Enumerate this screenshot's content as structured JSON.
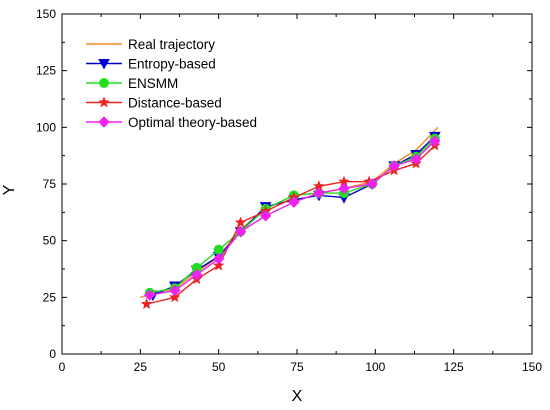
{
  "chart_data": {
    "type": "line",
    "xlabel": "X",
    "ylabel": "Y",
    "xlim": [
      0,
      150
    ],
    "ylim": [
      0,
      150
    ],
    "xticks": [
      "0",
      "25",
      "50",
      "75",
      "100",
      "125",
      "150"
    ],
    "yticks": [
      "0",
      "25",
      "50",
      "75",
      "100",
      "125",
      "150"
    ],
    "grid": false,
    "legend_position": "top-left",
    "series": [
      {
        "name": "Real trajectory",
        "color": "#f28c28",
        "marker": "none",
        "x": [
          25,
          30,
          36,
          43,
          50,
          57,
          65,
          74,
          82,
          90,
          99,
          106,
          113,
          120
        ],
        "y": [
          25,
          27,
          29,
          36,
          43,
          55,
          64,
          70,
          71,
          73,
          76,
          84,
          90,
          100
        ]
      },
      {
        "name": "Entropy-based",
        "color": "#0000cc",
        "marker": "triangle-down",
        "x": [
          29,
          36,
          43,
          50,
          57,
          65,
          74,
          82,
          90,
          99,
          106,
          113,
          119
        ],
        "y": [
          26,
          30,
          37,
          43,
          54,
          65,
          68,
          70,
          69,
          75,
          83,
          88,
          96
        ]
      },
      {
        "name": "ENSMM",
        "color": "#22dd22",
        "marker": "circle",
        "x": [
          28,
          36,
          43,
          50,
          57,
          65,
          74,
          82,
          90,
          99,
          106,
          113,
          119
        ],
        "y": [
          27,
          29,
          38,
          46,
          54,
          64,
          70,
          71,
          71,
          75,
          83,
          87,
          95
        ]
      },
      {
        "name": "Distance-based",
        "color": "#ee2222",
        "marker": "star",
        "x": [
          27,
          36,
          43,
          50,
          57,
          65,
          74,
          82,
          90,
          98,
          106,
          113,
          119
        ],
        "y": [
          22,
          25,
          33,
          39,
          58,
          63,
          69,
          74,
          76,
          76,
          81,
          84,
          92
        ]
      },
      {
        "name": "Optimal theory-based",
        "color": "#ee22ee",
        "marker": "diamond",
        "x": [
          28,
          36,
          43,
          50,
          57,
          65,
          74,
          82,
          90,
          99,
          106,
          113,
          119
        ],
        "y": [
          26,
          28,
          35,
          42,
          54,
          61,
          67,
          71,
          73,
          75,
          83,
          86,
          94
        ]
      }
    ]
  }
}
